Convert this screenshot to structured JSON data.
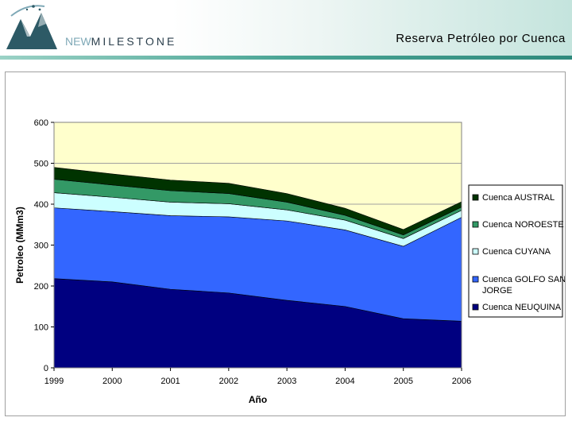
{
  "header": {
    "brand_prefix": "NEW",
    "brand_name": "MILESTONE",
    "slide_title": "Reserva Petróleo por Cuenca"
  },
  "colors": {
    "plot_background": "#ffffcc",
    "gridline": "#a0a0a0"
  },
  "chart_data": {
    "type": "area",
    "stacked": true,
    "title": "",
    "xlabel": "Año",
    "ylabel": "Petroleo (MMm3)",
    "x": [
      "1999",
      "2000",
      "2001",
      "2002",
      "2003",
      "2004",
      "2005",
      "2006"
    ],
    "ylim": [
      0,
      600
    ],
    "yticks": [
      0,
      100,
      200,
      300,
      400,
      500,
      600
    ],
    "grid": true,
    "legend_position": "right",
    "series": [
      {
        "name": "Cuenca NEUQUINA",
        "color": "#000080",
        "values": [
          218,
          210,
          192,
          183,
          165,
          150,
          120,
          114
        ]
      },
      {
        "name": "Cuenca GOLFO SAN JORGE",
        "color": "#3366ff",
        "values": [
          173,
          172,
          180,
          186,
          194,
          187,
          177,
          254
        ]
      },
      {
        "name": "Cuenca CUYANA",
        "color": "#ccffff",
        "values": [
          37,
          35,
          33,
          32,
          27,
          24,
          19,
          17
        ]
      },
      {
        "name": "Cuenca NOROESTE",
        "color": "#339966",
        "values": [
          33,
          30,
          28,
          25,
          19,
          12,
          9,
          8
        ]
      },
      {
        "name": "Cuenca AUSTRAL",
        "color": "#003300",
        "values": [
          29,
          27,
          26,
          25,
          21,
          17,
          13,
          13
        ]
      }
    ]
  }
}
